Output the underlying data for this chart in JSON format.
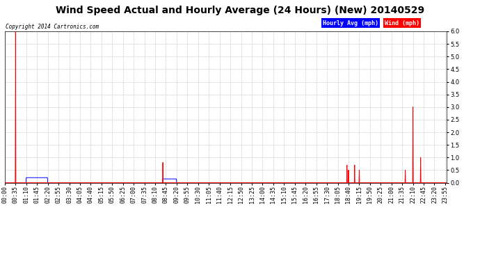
{
  "title": "Wind Speed Actual and Hourly Average (24 Hours) (New) 20140529",
  "copyright": "Copyright 2014 Cartronics.com",
  "ylim": [
    0.0,
    6.0
  ],
  "yticks": [
    0.0,
    0.5,
    1.0,
    1.5,
    2.0,
    2.5,
    3.0,
    3.5,
    4.0,
    4.5,
    5.0,
    5.5,
    6.0
  ],
  "legend_hourly_label": "Hourly Avg (mph)",
  "legend_wind_label": "Wind (mph)",
  "hourly_color": "#0000ff",
  "wind_color": "#ff0000",
  "background_color": "#ffffff",
  "grid_color": "#b0b0b0",
  "title_fontsize": 10,
  "tick_fontsize": 6,
  "total_minutes": 1440,
  "xtick_interval_minutes": 35,
  "wind_data": [
    [
      35,
      6.0
    ],
    [
      515,
      0.8
    ],
    [
      516,
      0.0
    ],
    [
      1115,
      0.7
    ],
    [
      1116,
      0.0
    ],
    [
      1120,
      0.5
    ],
    [
      1121,
      0.0
    ],
    [
      1140,
      0.7
    ],
    [
      1141,
      0.0
    ],
    [
      1155,
      0.5
    ],
    [
      1156,
      0.0
    ],
    [
      1305,
      0.5
    ],
    [
      1306,
      0.0
    ],
    [
      1330,
      3.0
    ],
    [
      1331,
      0.0
    ],
    [
      1355,
      1.0
    ],
    [
      1356,
      0.0
    ]
  ],
  "hourly_data": [
    [
      70,
      0.2
    ],
    [
      140,
      0.0
    ],
    [
      515,
      0.15
    ],
    [
      560,
      0.0
    ]
  ]
}
